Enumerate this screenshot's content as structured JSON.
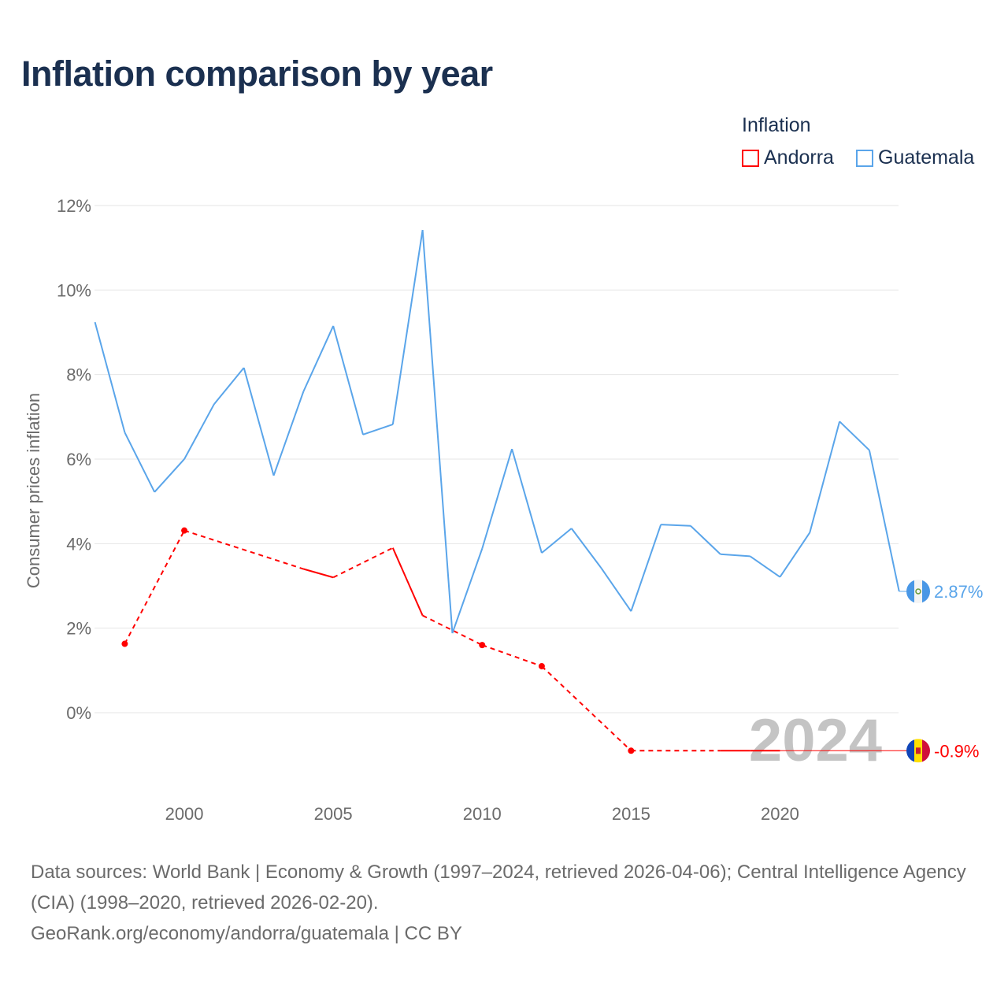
{
  "title": "Inflation comparison by year",
  "legend": {
    "title": "Inflation",
    "items": [
      {
        "label": "Andorra",
        "color": "#ff0000"
      },
      {
        "label": "Guatemala",
        "color": "#5aa5ea"
      }
    ]
  },
  "footer": {
    "line1": "Data sources: World Bank | Economy & Growth (1997–2024, retrieved 2026-04-06); Central Intelligence Agency (CIA) (1998–2020, retrieved 2026-02-20).",
    "line2": "GeoRank.org/economy/andorra/guatemala | CC BY"
  },
  "chart_data": {
    "type": "line",
    "title": "Inflation comparison by year",
    "xlabel": "",
    "ylabel": "Consumer prices inflation",
    "xlim": [
      1997,
      2024
    ],
    "ylim": [
      -2,
      12
    ],
    "x_ticks": [
      2000,
      2005,
      2010,
      2015,
      2020
    ],
    "y_ticks": [
      0,
      2,
      4,
      6,
      8,
      10,
      12
    ],
    "y_tick_labels": [
      "0%",
      "2%",
      "4%",
      "6%",
      "8%",
      "10%",
      "12%"
    ],
    "grid": true,
    "legend_position": "top-right",
    "year_watermark": "2024",
    "series": [
      {
        "name": "Andorra",
        "color": "#ff0000",
        "end_label": "-0.9%",
        "end_value": -0.9,
        "x": [
          1998,
          2000,
          2004,
          2005,
          2007,
          2008,
          2010,
          2012,
          2015,
          2018,
          2019,
          2020
        ],
        "y": [
          1.63,
          4.31,
          3.4,
          3.2,
          3.9,
          2.3,
          1.6,
          1.1,
          -0.9,
          -0.9,
          -0.9,
          -0.9
        ]
      },
      {
        "name": "Guatemala",
        "color": "#5aa5ea",
        "end_label": "2.87%",
        "end_value": 2.87,
        "x": [
          1997,
          1998,
          1999,
          2000,
          2001,
          2002,
          2003,
          2004,
          2005,
          2006,
          2007,
          2008,
          2009,
          2010,
          2011,
          2012,
          2013,
          2014,
          2015,
          2016,
          2017,
          2018,
          2019,
          2020,
          2021,
          2022,
          2023,
          2024
        ],
        "y": [
          9.24,
          6.63,
          5.22,
          6.0,
          7.3,
          8.16,
          5.61,
          7.6,
          9.15,
          6.58,
          6.82,
          11.42,
          1.88,
          3.88,
          6.24,
          3.78,
          4.36,
          3.42,
          2.4,
          4.45,
          4.42,
          3.75,
          3.7,
          3.21,
          4.26,
          6.89,
          6.21,
          2.87
        ]
      }
    ]
  }
}
